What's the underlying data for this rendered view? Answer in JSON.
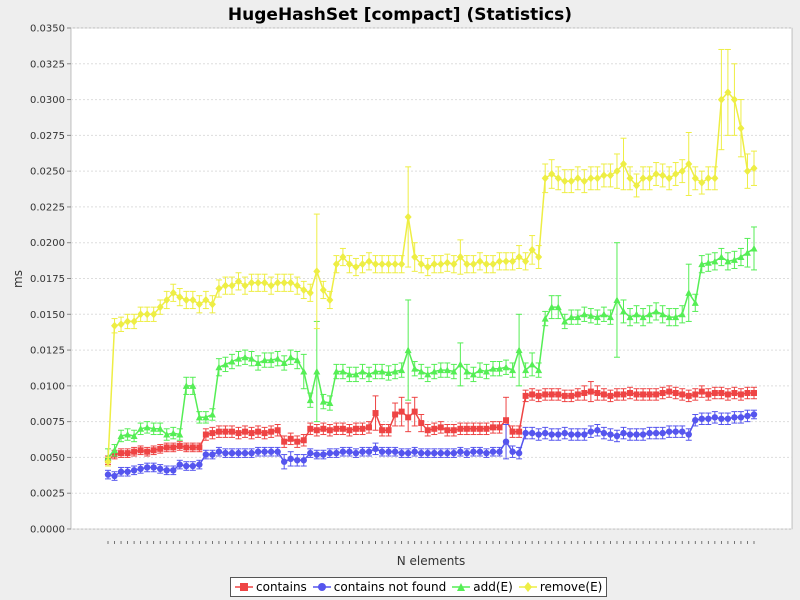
{
  "chart_data": {
    "type": "line",
    "title": "HugeHashSet [compact] (Statistics)",
    "xlabel": "N elements",
    "ylabel": "ms",
    "ylim": [
      0,
      0.035
    ],
    "yticks": [
      "0.0000",
      "0.0025",
      "0.0050",
      "0.0075",
      "0.0100",
      "0.0125",
      "0.0150",
      "0.0175",
      "0.0200",
      "0.0225",
      "0.0250",
      "0.0275",
      "0.0300",
      "0.0325",
      "0.0350"
    ],
    "grid": true,
    "legend_position": "bottom",
    "x": [
      1,
      2,
      3,
      4,
      5,
      6,
      7,
      8,
      9,
      10,
      11,
      12,
      13,
      14,
      15,
      16,
      17,
      18,
      19,
      20,
      21,
      22,
      23,
      24,
      25,
      26,
      27,
      28,
      29,
      30,
      31,
      32,
      33,
      34,
      35,
      36,
      37,
      38,
      39,
      40,
      41,
      42,
      43,
      44,
      45,
      46,
      47,
      48,
      49,
      50,
      51,
      52,
      53,
      54,
      55,
      56,
      57,
      58,
      59,
      60,
      61,
      62,
      63,
      64,
      65,
      66,
      67,
      68,
      69,
      70,
      71,
      72,
      73,
      74,
      75,
      76,
      77,
      78,
      79,
      80,
      81,
      82,
      83,
      84,
      85,
      86,
      87,
      88,
      89,
      90,
      91,
      92,
      93,
      94,
      95,
      96,
      97,
      98,
      99,
      100
    ],
    "series": [
      {
        "name": "contains",
        "color": "#ee4444",
        "marker": "square",
        "values": [
          0.0048,
          0.0052,
          0.0053,
          0.0053,
          0.0054,
          0.0055,
          0.0054,
          0.0055,
          0.0056,
          0.0057,
          0.0057,
          0.0058,
          0.0057,
          0.0057,
          0.0057,
          0.0066,
          0.0067,
          0.0068,
          0.0068,
          0.0068,
          0.0067,
          0.0068,
          0.0067,
          0.0068,
          0.0067,
          0.0068,
          0.0069,
          0.0061,
          0.0063,
          0.0061,
          0.0062,
          0.007,
          0.0069,
          0.007,
          0.0069,
          0.007,
          0.007,
          0.0069,
          0.007,
          0.007,
          0.0071,
          0.0081,
          0.0069,
          0.0069,
          0.008,
          0.0082,
          0.0078,
          0.0082,
          0.0074,
          0.0069,
          0.007,
          0.0071,
          0.0069,
          0.0069,
          0.007,
          0.007,
          0.007,
          0.007,
          0.007,
          0.0071,
          0.0071,
          0.0076,
          0.0068,
          0.0068,
          0.0093,
          0.0094,
          0.0093,
          0.0094,
          0.0094,
          0.0094,
          0.0093,
          0.0093,
          0.0094,
          0.0095,
          0.0096,
          0.0095,
          0.0094,
          0.0093,
          0.0094,
          0.0094,
          0.0095,
          0.0094,
          0.0094,
          0.0094,
          0.0094,
          0.0095,
          0.0096,
          0.0095,
          0.0094,
          0.0093,
          0.0094,
          0.0096,
          0.0094,
          0.0095,
          0.0095,
          0.0094,
          0.0095,
          0.0094,
          0.0095,
          0.0095
        ],
        "errors": [
          0.0003,
          0.0003,
          0.0003,
          0.0003,
          0.0003,
          0.0003,
          0.0003,
          0.0003,
          0.0003,
          0.0003,
          0.0003,
          0.0003,
          0.0003,
          0.0003,
          0.0003,
          0.0004,
          0.0004,
          0.0004,
          0.0004,
          0.0004,
          0.0004,
          0.0004,
          0.0004,
          0.0004,
          0.0004,
          0.0004,
          0.0004,
          0.0004,
          0.0004,
          0.0004,
          0.0004,
          0.0004,
          0.0004,
          0.0004,
          0.0004,
          0.0004,
          0.0004,
          0.0004,
          0.0004,
          0.0004,
          0.0004,
          0.0012,
          0.0004,
          0.0004,
          0.0008,
          0.001,
          0.001,
          0.001,
          0.0006,
          0.0004,
          0.0004,
          0.0004,
          0.0004,
          0.0004,
          0.0004,
          0.0004,
          0.0004,
          0.0004,
          0.0004,
          0.0004,
          0.0004,
          0.0016,
          0.0004,
          0.0004,
          0.0004,
          0.0004,
          0.0004,
          0.0004,
          0.0004,
          0.0004,
          0.0004,
          0.0004,
          0.0004,
          0.0005,
          0.0007,
          0.0005,
          0.0004,
          0.0004,
          0.0004,
          0.0004,
          0.0004,
          0.0004,
          0.0004,
          0.0004,
          0.0004,
          0.0004,
          0.0004,
          0.0004,
          0.0004,
          0.0004,
          0.0004,
          0.0004,
          0.0004,
          0.0004,
          0.0004,
          0.0004,
          0.0004,
          0.0004,
          0.0004,
          0.0004
        ]
      },
      {
        "name": "contains not found",
        "color": "#5555ee",
        "marker": "circle",
        "values": [
          0.0038,
          0.0037,
          0.004,
          0.004,
          0.0041,
          0.0042,
          0.0043,
          0.0043,
          0.0042,
          0.0041,
          0.0041,
          0.0045,
          0.0044,
          0.0044,
          0.0045,
          0.0052,
          0.0052,
          0.0054,
          0.0053,
          0.0053,
          0.0053,
          0.0053,
          0.0053,
          0.0054,
          0.0054,
          0.0054,
          0.0054,
          0.0047,
          0.0049,
          0.0048,
          0.0048,
          0.0053,
          0.0052,
          0.0052,
          0.0053,
          0.0053,
          0.0054,
          0.0054,
          0.0053,
          0.0054,
          0.0054,
          0.0056,
          0.0054,
          0.0054,
          0.0054,
          0.0053,
          0.0053,
          0.0054,
          0.0053,
          0.0053,
          0.0053,
          0.0053,
          0.0053,
          0.0053,
          0.0054,
          0.0053,
          0.0054,
          0.0054,
          0.0053,
          0.0054,
          0.0054,
          0.0061,
          0.0054,
          0.0053,
          0.0067,
          0.0067,
          0.0066,
          0.0067,
          0.0066,
          0.0066,
          0.0067,
          0.0066,
          0.0066,
          0.0066,
          0.0068,
          0.0069,
          0.0067,
          0.0066,
          0.0065,
          0.0067,
          0.0066,
          0.0066,
          0.0066,
          0.0067,
          0.0067,
          0.0067,
          0.0068,
          0.0068,
          0.0068,
          0.0066,
          0.0076,
          0.0077,
          0.0077,
          0.0078,
          0.0077,
          0.0077,
          0.0078,
          0.0078,
          0.0079,
          0.008
        ],
        "errors": [
          0.0003,
          0.0003,
          0.0003,
          0.0003,
          0.0003,
          0.0003,
          0.0003,
          0.0003,
          0.0003,
          0.0003,
          0.0003,
          0.0003,
          0.0003,
          0.0003,
          0.0003,
          0.0003,
          0.0003,
          0.0003,
          0.0003,
          0.0003,
          0.0003,
          0.0003,
          0.0003,
          0.0003,
          0.0003,
          0.0003,
          0.0003,
          0.0005,
          0.0005,
          0.0004,
          0.0004,
          0.0003,
          0.0003,
          0.0003,
          0.0003,
          0.0003,
          0.0003,
          0.0003,
          0.0003,
          0.0003,
          0.0003,
          0.0004,
          0.0003,
          0.0003,
          0.0003,
          0.0003,
          0.0003,
          0.0003,
          0.0003,
          0.0003,
          0.0003,
          0.0003,
          0.0003,
          0.0003,
          0.0003,
          0.0003,
          0.0003,
          0.0003,
          0.0003,
          0.0003,
          0.0003,
          0.0012,
          0.0004,
          0.0004,
          0.0004,
          0.0004,
          0.0004,
          0.0004,
          0.0004,
          0.0004,
          0.0004,
          0.0004,
          0.0004,
          0.0004,
          0.0004,
          0.0004,
          0.0004,
          0.0004,
          0.0004,
          0.0004,
          0.0004,
          0.0004,
          0.0004,
          0.0004,
          0.0004,
          0.0004,
          0.0004,
          0.0004,
          0.0004,
          0.0004,
          0.0004,
          0.0004,
          0.0004,
          0.0004,
          0.0004,
          0.0004,
          0.0004,
          0.0004,
          0.0004,
          0.0003
        ]
      },
      {
        "name": "add(E)",
        "color": "#55ee55",
        "marker": "triangle",
        "values": [
          0.005,
          0.0055,
          0.0065,
          0.0066,
          0.0065,
          0.007,
          0.0071,
          0.007,
          0.007,
          0.0066,
          0.0067,
          0.0066,
          0.01,
          0.01,
          0.0078,
          0.0078,
          0.008,
          0.0113,
          0.0115,
          0.0117,
          0.0119,
          0.012,
          0.0119,
          0.0116,
          0.0118,
          0.0118,
          0.0119,
          0.0116,
          0.012,
          0.0118,
          0.011,
          0.009,
          0.011,
          0.0089,
          0.0088,
          0.011,
          0.011,
          0.0108,
          0.0108,
          0.011,
          0.0108,
          0.011,
          0.011,
          0.0109,
          0.011,
          0.0111,
          0.0125,
          0.0112,
          0.011,
          0.0108,
          0.011,
          0.0111,
          0.0111,
          0.011,
          0.0115,
          0.011,
          0.0108,
          0.0111,
          0.011,
          0.0112,
          0.0112,
          0.0113,
          0.0111,
          0.0125,
          0.0111,
          0.0115,
          0.0111,
          0.0147,
          0.0155,
          0.0155,
          0.0145,
          0.0148,
          0.0148,
          0.015,
          0.0149,
          0.0148,
          0.015,
          0.0148,
          0.016,
          0.0152,
          0.0148,
          0.015,
          0.0148,
          0.015,
          0.0152,
          0.015,
          0.0148,
          0.0148,
          0.015,
          0.0165,
          0.0158,
          0.0185,
          0.0186,
          0.0187,
          0.019,
          0.0187,
          0.0188,
          0.019,
          0.0193,
          0.0196
        ],
        "errors": [
          0.0006,
          0.0004,
          0.0004,
          0.0004,
          0.0004,
          0.0004,
          0.0004,
          0.0004,
          0.0004,
          0.0004,
          0.0004,
          0.0004,
          0.0006,
          0.0006,
          0.0004,
          0.0004,
          0.0004,
          0.0006,
          0.0005,
          0.0005,
          0.0005,
          0.0005,
          0.0005,
          0.0005,
          0.0005,
          0.0005,
          0.0005,
          0.0005,
          0.0005,
          0.0006,
          0.0012,
          0.0005,
          0.0035,
          0.0005,
          0.0005,
          0.0005,
          0.0005,
          0.0005,
          0.0005,
          0.0005,
          0.0005,
          0.0005,
          0.0005,
          0.0005,
          0.0005,
          0.0005,
          0.0035,
          0.0005,
          0.0005,
          0.0005,
          0.0005,
          0.0005,
          0.0005,
          0.0005,
          0.0015,
          0.0005,
          0.0005,
          0.0005,
          0.0005,
          0.0005,
          0.0005,
          0.0005,
          0.0005,
          0.0025,
          0.0005,
          0.0008,
          0.0005,
          0.0005,
          0.0008,
          0.0008,
          0.0005,
          0.0005,
          0.0005,
          0.0005,
          0.0005,
          0.0005,
          0.0005,
          0.0005,
          0.004,
          0.0008,
          0.0006,
          0.0006,
          0.0006,
          0.0006,
          0.0006,
          0.0006,
          0.0006,
          0.0006,
          0.0006,
          0.002,
          0.0006,
          0.0006,
          0.0006,
          0.0006,
          0.0006,
          0.0006,
          0.0006,
          0.0006,
          0.001,
          0.0015
        ]
      },
      {
        "name": "remove(E)",
        "color": "#eeee44",
        "marker": "diamond",
        "values": [
          0.0047,
          0.0142,
          0.0143,
          0.0145,
          0.0145,
          0.015,
          0.015,
          0.015,
          0.0155,
          0.016,
          0.0165,
          0.0162,
          0.016,
          0.016,
          0.0157,
          0.016,
          0.0157,
          0.0168,
          0.017,
          0.017,
          0.0173,
          0.017,
          0.0172,
          0.0172,
          0.0172,
          0.017,
          0.0172,
          0.0172,
          0.0172,
          0.017,
          0.0167,
          0.0165,
          0.018,
          0.0167,
          0.016,
          0.0185,
          0.019,
          0.0185,
          0.0183,
          0.0185,
          0.0187,
          0.0185,
          0.0185,
          0.0185,
          0.0185,
          0.0185,
          0.0218,
          0.019,
          0.0185,
          0.0183,
          0.0185,
          0.0185,
          0.0186,
          0.0185,
          0.019,
          0.0185,
          0.0185,
          0.0187,
          0.0185,
          0.0185,
          0.0187,
          0.0187,
          0.0187,
          0.019,
          0.0187,
          0.0195,
          0.019,
          0.0245,
          0.0248,
          0.0245,
          0.0243,
          0.0243,
          0.0245,
          0.0243,
          0.0245,
          0.0245,
          0.0247,
          0.0247,
          0.025,
          0.0255,
          0.0245,
          0.024,
          0.0245,
          0.0245,
          0.0248,
          0.0247,
          0.0245,
          0.0248,
          0.025,
          0.0255,
          0.0245,
          0.0242,
          0.0245,
          0.0245,
          0.03,
          0.0305,
          0.03,
          0.028,
          0.025,
          0.0252
        ],
        "errors": [
          0.0003,
          0.0005,
          0.0005,
          0.0005,
          0.0005,
          0.0005,
          0.0005,
          0.0005,
          0.0005,
          0.0006,
          0.0006,
          0.0006,
          0.0006,
          0.0006,
          0.0006,
          0.0006,
          0.0006,
          0.0006,
          0.0006,
          0.0006,
          0.0006,
          0.0006,
          0.0006,
          0.0006,
          0.0006,
          0.0006,
          0.0006,
          0.0006,
          0.0006,
          0.0006,
          0.0006,
          0.0006,
          0.004,
          0.0006,
          0.0006,
          0.0006,
          0.0006,
          0.0006,
          0.0006,
          0.0006,
          0.0006,
          0.0006,
          0.0006,
          0.0006,
          0.0006,
          0.0006,
          0.0035,
          0.001,
          0.0006,
          0.0006,
          0.0006,
          0.0006,
          0.0006,
          0.0006,
          0.0012,
          0.0006,
          0.0006,
          0.0006,
          0.0006,
          0.0006,
          0.0006,
          0.0006,
          0.0006,
          0.0008,
          0.0006,
          0.001,
          0.0008,
          0.001,
          0.001,
          0.0008,
          0.0008,
          0.0008,
          0.0008,
          0.0008,
          0.0008,
          0.0008,
          0.0008,
          0.0008,
          0.0012,
          0.0018,
          0.0008,
          0.0008,
          0.0008,
          0.0008,
          0.0008,
          0.0008,
          0.0008,
          0.0008,
          0.0008,
          0.0022,
          0.0008,
          0.0008,
          0.0008,
          0.0008,
          0.0035,
          0.003,
          0.0025,
          0.002,
          0.0012,
          0.0012
        ]
      }
    ]
  }
}
